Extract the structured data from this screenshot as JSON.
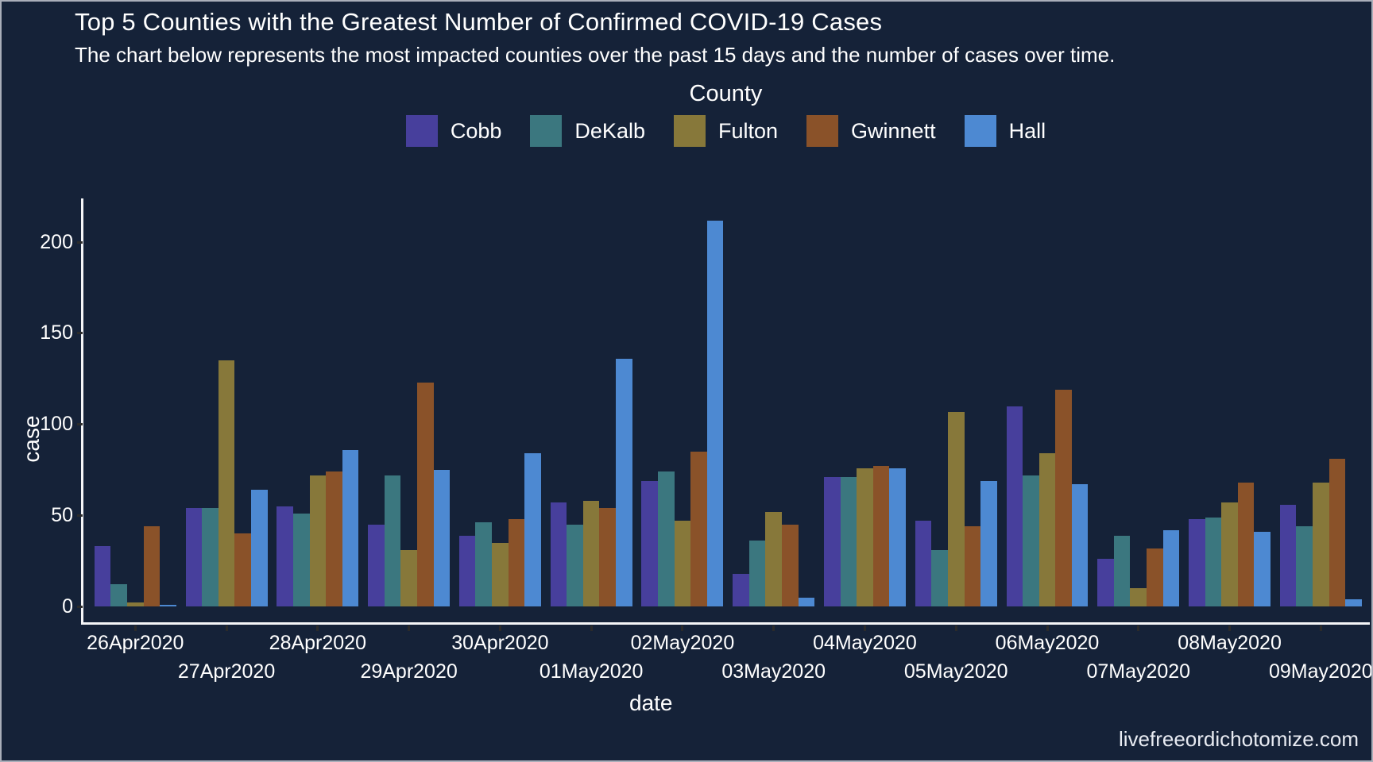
{
  "header": {
    "title": "Top 5 Counties with the Greatest Number of Confirmed COVID-19 Cases",
    "subtitle": "The chart below represents the most impacted counties over the past 15 days and the number of cases over time."
  },
  "legend": {
    "title": "County",
    "items": [
      {
        "label": "Cobb",
        "color": "#473f9c"
      },
      {
        "label": "DeKalb",
        "color": "#3b777f"
      },
      {
        "label": "Fulton",
        "color": "#87783a"
      },
      {
        "label": "Gwinnett",
        "color": "#8a5229"
      },
      {
        "label": "Hall",
        "color": "#4d89d2"
      }
    ]
  },
  "axes": {
    "y_label": "case",
    "x_label": "date",
    "y_ticks": [
      0,
      50,
      100,
      150,
      200
    ]
  },
  "caption": "livefreeordichotomize.com",
  "colors": {
    "background": "#152238",
    "axis_line": "#f5f6f8",
    "tick_mark": "#2b2b2b",
    "text": "#ffffff"
  },
  "chart_data": {
    "type": "bar",
    "title": "Top 5 Counties with the Greatest Number of Confirmed COVID-19 Cases",
    "subtitle": "The chart below represents the most impacted counties over the past 15 days and the number of cases over time.",
    "xlabel": "date",
    "ylabel": "case",
    "ylim": [
      0,
      215
    ],
    "grid": false,
    "legend_position": "top",
    "legend_title": "County",
    "categories": [
      "26Apr2020",
      "27Apr2020",
      "28Apr2020",
      "29Apr2020",
      "30Apr2020",
      "01May2020",
      "02May2020",
      "03May2020",
      "04May2020",
      "05May2020",
      "06May2020",
      "07May2020",
      "08May2020",
      "09May2020"
    ],
    "series": [
      {
        "name": "Cobb",
        "color": "#473f9c",
        "values": [
          33,
          54,
          55,
          45,
          39,
          57,
          69,
          18,
          71,
          47,
          110,
          26,
          48,
          56
        ]
      },
      {
        "name": "DeKalb",
        "color": "#3b777f",
        "values": [
          12,
          54,
          51,
          72,
          46,
          45,
          74,
          36,
          71,
          31,
          72,
          39,
          49,
          44
        ]
      },
      {
        "name": "Fulton",
        "color": "#87783a",
        "values": [
          2,
          135,
          72,
          31,
          35,
          58,
          47,
          52,
          76,
          107,
          84,
          10,
          57,
          68
        ]
      },
      {
        "name": "Gwinnett",
        "color": "#8a5229",
        "values": [
          44,
          40,
          74,
          123,
          48,
          54,
          85,
          45,
          77,
          44,
          119,
          32,
          68,
          81
        ]
      },
      {
        "name": "Hall",
        "color": "#4d89d2",
        "values": [
          1,
          64,
          86,
          75,
          84,
          136,
          212,
          5,
          76,
          69,
          67,
          42,
          41,
          4
        ]
      }
    ]
  }
}
